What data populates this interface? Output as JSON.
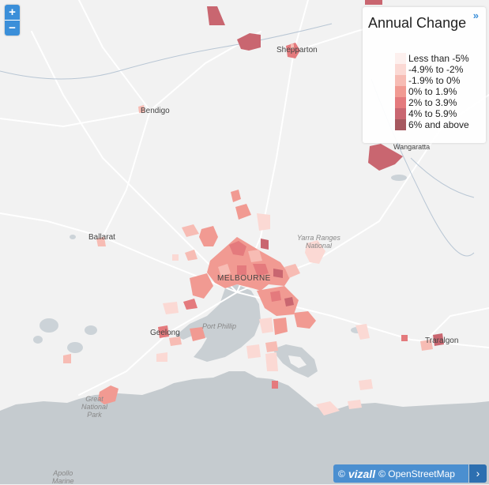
{
  "zoom": {
    "in_label": "+",
    "out_label": "−"
  },
  "legend": {
    "title": "Annual Change",
    "toggle": "»",
    "items": [
      {
        "label": "Less than -5%",
        "color": "#fdf0ee"
      },
      {
        "label": "-4.9% to -2%",
        "color": "#fbd9d4"
      },
      {
        "label": "-1.9% to 0%",
        "color": "#f7bcb4"
      },
      {
        "label": "0% to 1.9%",
        "color": "#f19a92"
      },
      {
        "label": "2% to 3.9%",
        "color": "#e47a7d"
      },
      {
        "label": "4% to 5.9%",
        "color": "#c96670"
      },
      {
        "label": "6% and above",
        "color": "#a6585f"
      }
    ]
  },
  "places": {
    "shepparton": "Shepparton",
    "bendigo": "Bendigo",
    "ballarat": "Ballarat",
    "melbourne": "MELBOURNE",
    "geelong": "Geelong",
    "traralgon": "Traralgon",
    "wangaratta": "Wangaratta",
    "port_phillip": "Port Phillip",
    "yarra_ranges_line1": "Yarra Ranges",
    "yarra_ranges_line2": "National",
    "great_otway_line1": "Great",
    "great_otway_line2": "National",
    "great_otway_line3": "Park",
    "apollo_line1": "Apollo",
    "apollo_line2": "Marine"
  },
  "colors": {
    "land": "#f2f2f2",
    "water": "#c9cfd3",
    "sea": "#c5cbcf",
    "road": "#ffffff",
    "river": "#9fb3c8",
    "accent": "#3b8fd9"
  },
  "credits": {
    "prefix": "©",
    "brand": "vizall",
    "osm": "© OpenStreetMap",
    "arrow": "›"
  }
}
